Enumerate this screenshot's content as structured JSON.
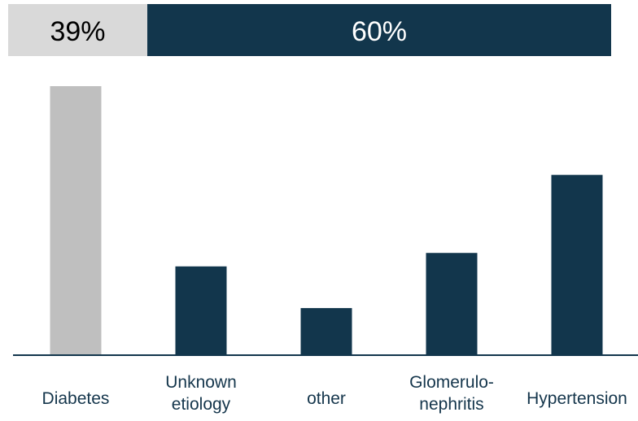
{
  "chart_data": {
    "type": "bar",
    "categories": [
      [
        "Diabetes"
      ],
      [
        "Unknown",
        "etiology"
      ],
      [
        "other"
      ],
      [
        "Glomerulo-",
        "nephritis"
      ],
      [
        "Hypertension"
      ]
    ],
    "values": [
      100,
      33,
      17.5,
      38,
      67
    ],
    "ylim": [
      0,
      100
    ],
    "grid": false,
    "bar_colors": [
      "#bfbfbf",
      "#12364c",
      "#12364c",
      "#12364c",
      "#12364c"
    ],
    "share_bar": [
      {
        "label": "39%",
        "value": 39,
        "color": "#d9d9d9",
        "text_color": "#000000"
      },
      {
        "label": "60%",
        "value": 60,
        "color": "#12364c",
        "text_color": "#ffffff"
      }
    ]
  },
  "colors": {
    "axis": "#12364c",
    "category_text": "#15364c"
  }
}
